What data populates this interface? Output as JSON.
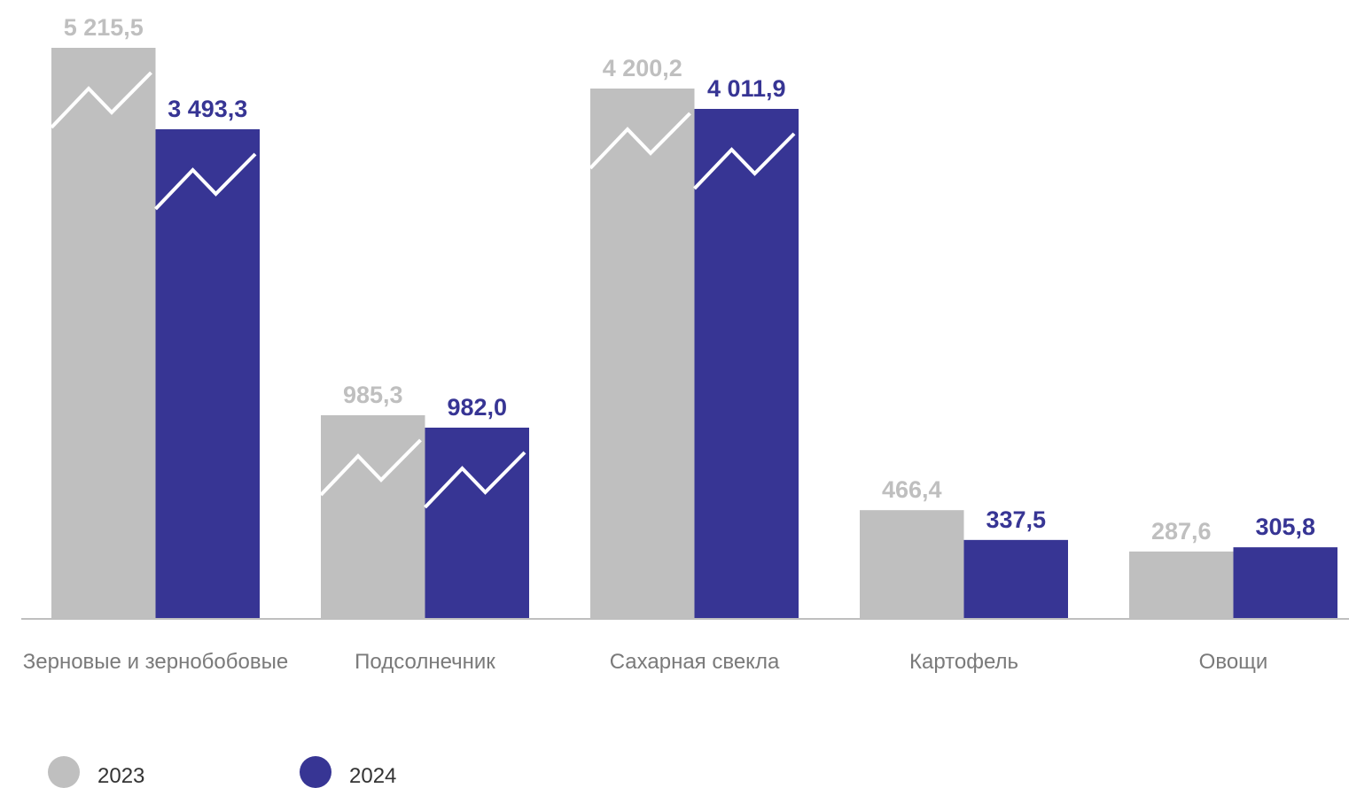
{
  "chart_data": {
    "type": "bar",
    "title": "",
    "xlabel": "",
    "ylabel": "",
    "categories": [
      "Зерновые и зернобобовые",
      "Подсолнечник",
      "Сахарная свекла",
      "Картофель",
      "Овощи"
    ],
    "series": [
      {
        "name": "2023",
        "color": "#bfbfbf",
        "values": [
          5215.5,
          985.3,
          4200.2,
          466.4,
          287.6
        ],
        "labels": [
          "5 215,5",
          "985,3",
          "4 200,2",
          "466,4",
          "287,6"
        ],
        "broken": [
          true,
          true,
          true,
          false,
          false
        ]
      },
      {
        "name": "2024",
        "color": "#373594",
        "values": [
          3493.3,
          982.0,
          4011.9,
          337.5,
          305.8
        ],
        "labels": [
          "3 493,3",
          "982,0",
          "4 011,9",
          "337,5",
          "305,8"
        ],
        "broken": [
          true,
          true,
          true,
          false,
          false
        ]
      }
    ],
    "axis_break": true,
    "grid": false,
    "legend_position": "bottom-left"
  }
}
